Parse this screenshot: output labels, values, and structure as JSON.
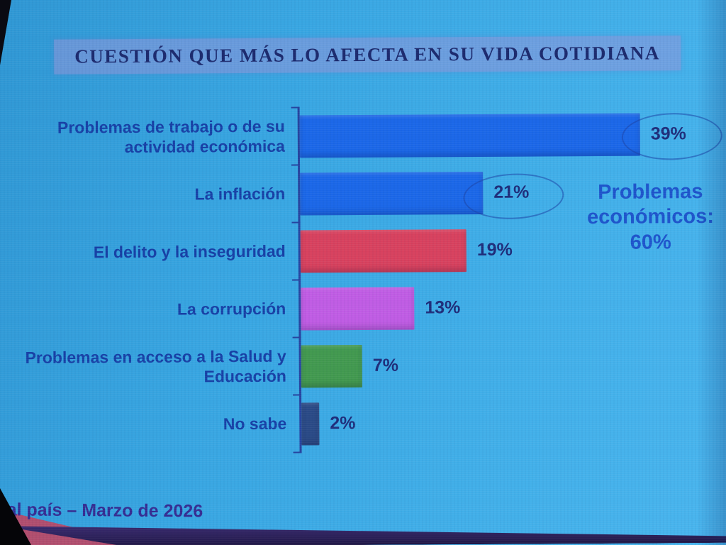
{
  "title": "CUESTIÓN QUE MÁS LO AFECTA EN SU VIDA COTIDIANA",
  "footer": "otal país – Marzo de 2026",
  "annotation_lines": [
    "Problemas",
    "económicos:",
    "60%"
  ],
  "chart_data": {
    "type": "bar",
    "orientation": "horizontal",
    "title": "CUESTIÓN QUE MÁS LO AFECTA EN SU VIDA COTIDIANA",
    "categories": [
      "Problemas de trabajo o de su actividad económica",
      "La inflación",
      "El delito y la inseguridad",
      "La corrupción",
      "Problemas en acceso a la Salud y Educación",
      "No sabe"
    ],
    "values": [
      39,
      21,
      19,
      13,
      7,
      2
    ],
    "value_labels": [
      "39%",
      "21%",
      "19%",
      "13%",
      "7%",
      "2%"
    ],
    "bar_colors": [
      "#1b67e8",
      "#1b67e8",
      "#d8415e",
      "#c05ce4",
      "#42994f",
      "#2a4a86"
    ],
    "unit": "%",
    "xlim": [
      0,
      42
    ],
    "grid": false,
    "legend": "none",
    "annotation": "Problemas económicos: 60%",
    "annotation_groups_values": [
      "39%",
      "21%"
    ],
    "footer_note": "otal país – Marzo de 2026"
  },
  "colors": {
    "background": "#3aa8e4",
    "title_text": "#1c2a6e",
    "title_banner": "#9294d8",
    "category_label_text": "#1740a6",
    "value_label_text": "#1e2d7a",
    "axis_line": "#2644a0",
    "annotation_text": "#1e55cc",
    "ellipse_outline": "#1c46a8",
    "footer_text": "#352d92",
    "footer_band_purple": "#3d2d75",
    "footer_wedge_pink": "#b14e6e"
  }
}
